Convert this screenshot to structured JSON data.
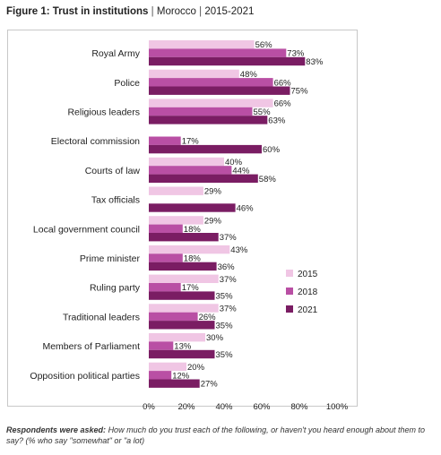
{
  "header": {
    "title_bold": "Figure 1: Trust in institutions",
    "separator1": "|",
    "country": "Morocco",
    "separator2": "|",
    "period": "2015-2021"
  },
  "footnote": {
    "lead": "Respondents were asked:",
    "text": "How much do you trust each of the following, or haven't you heard enough about them to say? (% who say \"somewhat\" or \"a lot)"
  },
  "chart_data": {
    "type": "bar",
    "orientation": "horizontal",
    "categories": [
      "Royal Army",
      "Police",
      "Religious leaders",
      "Electoral commission",
      "Courts of law",
      "Tax officials",
      "Local government council",
      "Prime minister",
      "Ruling party",
      "Traditional leaders",
      "Members of Parliament",
      "Opposition political parties"
    ],
    "series": [
      {
        "name": "2015",
        "color": "#f0c6e4",
        "values": [
          56,
          48,
          66,
          null,
          40,
          29,
          29,
          43,
          37,
          37,
          30,
          20
        ]
      },
      {
        "name": "2018",
        "color": "#b94fa4",
        "values": [
          73,
          66,
          55,
          17,
          44,
          null,
          18,
          18,
          17,
          26,
          13,
          12
        ]
      },
      {
        "name": "2021",
        "color": "#7a1d63",
        "values": [
          83,
          75,
          63,
          60,
          58,
          46,
          37,
          36,
          35,
          35,
          35,
          27
        ]
      }
    ],
    "value_suffix": "%",
    "xlim": [
      0,
      100
    ],
    "xticks": [
      "0%",
      "20%",
      "40%",
      "60%",
      "80%",
      "100%"
    ],
    "grid": false,
    "legend": "right"
  }
}
